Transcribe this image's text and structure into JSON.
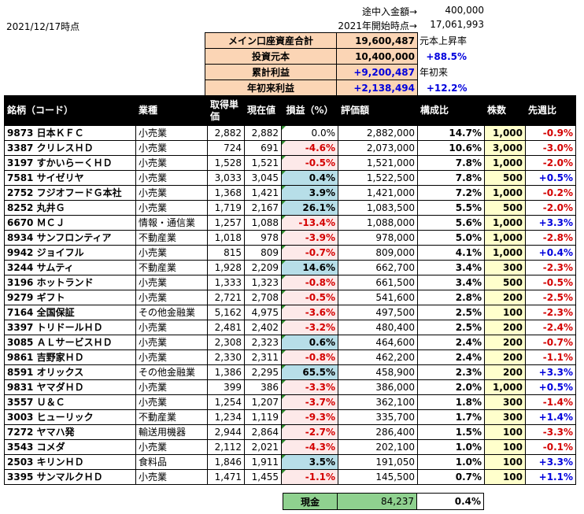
{
  "date_label": "2021/12/17時点",
  "deposit": {
    "label": "途中入金額→",
    "value": "400,000"
  },
  "start": {
    "label": "2021年開始時点→",
    "value": "17,061,993"
  },
  "summary": [
    {
      "label": "メイン口座資産合計",
      "value": "19,600,487",
      "side": "元本上昇率",
      "side_color": "#000000"
    },
    {
      "label": "投資元本",
      "value": "10,400,000",
      "side": "+88.5%",
      "side_color": "#0000dd"
    },
    {
      "label": "累計利益",
      "value": "+9,200,487",
      "side": "年初来",
      "side_color": "#000000"
    },
    {
      "label": "年初来利益",
      "value": "+2,138,494",
      "side": "+12.2%",
      "side_color": "#0000dd"
    }
  ],
  "headers": {
    "name": "銘柄（コード）",
    "industry": "業種",
    "cost": "取得単価",
    "price": "現在値",
    "pl": "損益（%）",
    "valuation": "評価額",
    "ratio": "構成比",
    "shares": "株数",
    "weekly": "先週比"
  },
  "rows": [
    {
      "name": "9873 日本ＫＦＣ",
      "industry": "小売業",
      "cost": "2,882",
      "price": "2,882",
      "pl": "0.0%",
      "valuation": "2,882,000",
      "ratio": "14.7%",
      "shares": "1,000",
      "weekly": "-0.9%"
    },
    {
      "name": "3387 クリレスＨＤ",
      "industry": "小売業",
      "cost": "724",
      "price": "691",
      "pl": "-4.6%",
      "valuation": "2,073,000",
      "ratio": "10.6%",
      "shares": "3,000",
      "weekly": "-3.0%"
    },
    {
      "name": "3197 すかいらーくＨＤ",
      "industry": "小売業",
      "cost": "1,528",
      "price": "1,521",
      "pl": "-0.5%",
      "valuation": "1,521,000",
      "ratio": "7.8%",
      "shares": "1,000",
      "weekly": "-2.0%"
    },
    {
      "name": "7581 サイゼリヤ",
      "industry": "小売業",
      "cost": "3,033",
      "price": "3,045",
      "pl": "0.4%",
      "valuation": "1,522,500",
      "ratio": "7.8%",
      "shares": "500",
      "weekly": "+0.5%"
    },
    {
      "name": "2752 フジオフードＧ本社",
      "industry": "小売業",
      "cost": "1,368",
      "price": "1,421",
      "pl": "3.9%",
      "valuation": "1,421,000",
      "ratio": "7.2%",
      "shares": "1,000",
      "weekly": "-0.2%"
    },
    {
      "name": "8252 丸井Ｇ",
      "industry": "小売業",
      "cost": "1,719",
      "price": "2,167",
      "pl": "26.1%",
      "valuation": "1,083,500",
      "ratio": "5.5%",
      "shares": "500",
      "weekly": "-2.0%"
    },
    {
      "name": "6670 ＭＣＪ",
      "industry": "情報・通信業",
      "cost": "1,257",
      "price": "1,088",
      "pl": "-13.4%",
      "valuation": "1,088,000",
      "ratio": "5.6%",
      "shares": "1,000",
      "weekly": "+3.3%"
    },
    {
      "name": "8934 サンフロンティア",
      "industry": "不動産業",
      "cost": "1,018",
      "price": "978",
      "pl": "-3.9%",
      "valuation": "978,000",
      "ratio": "5.0%",
      "shares": "1,000",
      "weekly": "-2.8%"
    },
    {
      "name": "9942 ジョイフル",
      "industry": "小売業",
      "cost": "815",
      "price": "809",
      "pl": "-0.7%",
      "valuation": "809,000",
      "ratio": "4.1%",
      "shares": "1,000",
      "weekly": "+0.4%"
    },
    {
      "name": "3244 サムティ",
      "industry": "不動産業",
      "cost": "1,928",
      "price": "2,209",
      "pl": "14.6%",
      "valuation": "662,700",
      "ratio": "3.4%",
      "shares": "300",
      "weekly": "-2.3%"
    },
    {
      "name": "3196 ホットランド",
      "industry": "小売業",
      "cost": "1,333",
      "price": "1,323",
      "pl": "-0.8%",
      "valuation": "661,500",
      "ratio": "3.4%",
      "shares": "500",
      "weekly": "-0.5%"
    },
    {
      "name": "9279 ギフト",
      "industry": "小売業",
      "cost": "2,721",
      "price": "2,708",
      "pl": "-0.5%",
      "valuation": "541,600",
      "ratio": "2.8%",
      "shares": "200",
      "weekly": "-2.5%"
    },
    {
      "name": "7164 全国保証",
      "industry": "その他金融業",
      "cost": "5,162",
      "price": "4,975",
      "pl": "-3.6%",
      "valuation": "497,500",
      "ratio": "2.5%",
      "shares": "100",
      "weekly": "-2.3%"
    },
    {
      "name": "3397 トリドールＨＤ",
      "industry": "小売業",
      "cost": "2,481",
      "price": "2,402",
      "pl": "-3.2%",
      "valuation": "480,400",
      "ratio": "2.5%",
      "shares": "200",
      "weekly": "-2.4%"
    },
    {
      "name": "3085 ＡＬサービスＨＤ",
      "industry": "小売業",
      "cost": "2,308",
      "price": "2,323",
      "pl": "0.6%",
      "valuation": "464,600",
      "ratio": "2.4%",
      "shares": "200",
      "weekly": "-0.7%"
    },
    {
      "name": "9861 吉野家ＨＤ",
      "industry": "小売業",
      "cost": "2,330",
      "price": "2,311",
      "pl": "-0.8%",
      "valuation": "462,200",
      "ratio": "2.4%",
      "shares": "200",
      "weekly": "-1.1%"
    },
    {
      "name": "8591 オリックス",
      "industry": "その他金融業",
      "cost": "1,386",
      "price": "2,295",
      "pl": "65.5%",
      "valuation": "458,900",
      "ratio": "2.3%",
      "shares": "200",
      "weekly": "+3.3%"
    },
    {
      "name": "9831 ヤマダＨＤ",
      "industry": "小売業",
      "cost": "399",
      "price": "386",
      "pl": "-3.3%",
      "valuation": "386,000",
      "ratio": "2.0%",
      "shares": "1,000",
      "weekly": "+0.5%"
    },
    {
      "name": "3557 Ｕ＆Ｃ",
      "industry": "小売業",
      "cost": "1,254",
      "price": "1,207",
      "pl": "-3.7%",
      "valuation": "362,100",
      "ratio": "1.8%",
      "shares": "300",
      "weekly": "-1.4%"
    },
    {
      "name": "3003 ヒューリック",
      "industry": "不動産業",
      "cost": "1,234",
      "price": "1,119",
      "pl": "-9.3%",
      "valuation": "335,700",
      "ratio": "1.7%",
      "shares": "300",
      "weekly": "+1.4%"
    },
    {
      "name": "7272 ヤマハ発",
      "industry": "輸送用機器",
      "cost": "2,944",
      "price": "2,864",
      "pl": "-2.7%",
      "valuation": "286,400",
      "ratio": "1.5%",
      "shares": "100",
      "weekly": "-3.3%"
    },
    {
      "name": "3543 コメダ",
      "industry": "小売業",
      "cost": "2,112",
      "price": "2,021",
      "pl": "-4.3%",
      "valuation": "202,100",
      "ratio": "1.0%",
      "shares": "100",
      "weekly": "-0.1%"
    },
    {
      "name": "2503 キリンＨＤ",
      "industry": "食料品",
      "cost": "1,846",
      "price": "1,911",
      "pl": "3.5%",
      "valuation": "191,050",
      "ratio": "1.0%",
      "shares": "100",
      "weekly": "+3.3%"
    },
    {
      "name": "3395 サンマルクＨＤ",
      "industry": "小売業",
      "cost": "1,471",
      "price": "1,455",
      "pl": "-1.1%",
      "valuation": "145,500",
      "ratio": "0.7%",
      "shares": "100",
      "weekly": "+1.1%"
    }
  ],
  "cash": {
    "label": "現金",
    "value": "84,237",
    "ratio": "0.4%"
  }
}
